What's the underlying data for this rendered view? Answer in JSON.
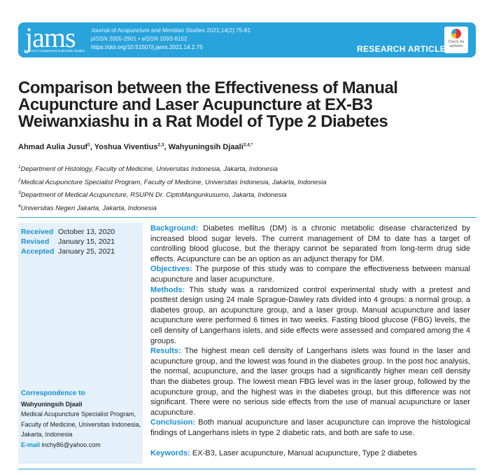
{
  "header": {
    "logo": "jams",
    "logo_sub": "Journal of Acupuncture & Meridian Studies",
    "journal": "Journal of Acupuncture and Meridian Studies 2021;14(2):75-81",
    "issn": "pISSN 2005-2901 • eISSN 2093-8152",
    "doi": "https://doi.org/10.51507/j.jams.2021.14.2.75",
    "article_type": "RESEARCH ARTICLE",
    "badge": "Check for updates"
  },
  "title": "Comparison between the Effectiveness of Manual Acupuncture and Laser Acupuncture at EX-B3 Weiwanxiashu in a Rat Model of Type 2 Diabetes",
  "authors": [
    {
      "name": "Ahmad Aulia Jusuf",
      "sup": "1"
    },
    {
      "name": "Yoshua Viventius",
      "sup": "2,3"
    },
    {
      "name": "Wahyuningsih Djaali",
      "sup": "2,4,*"
    }
  ],
  "affiliations": [
    {
      "sup": "1",
      "text": "Department of Histology, Faculty of Medicine, Universitas Indonesia, Jakarta, Indonesia"
    },
    {
      "sup": "2",
      "text": "Medical Acupuncture Specialist Program, Faculty of Medicine, Universitas Indonesia, Jakarta, Indonesia"
    },
    {
      "sup": "3",
      "text": "Department of Medical Acupuncture, RSUPN Dr. CiptoMangunkusumo, Jakarta, Indonesia"
    },
    {
      "sup": "4",
      "text": "Universitas Negeri Jakarta, Jakarta, Indonesia"
    }
  ],
  "dates": [
    {
      "label": "Received",
      "value": "October 13, 2020"
    },
    {
      "label": "Revised",
      "value": "January 15, 2021"
    },
    {
      "label": "Accepted",
      "value": "January 25, 2021"
    }
  ],
  "correspondence": {
    "label": "Correspondence to",
    "name": "Wahyuningsih Djaali",
    "address": "Medical Acupuncture Specialist Program, Faculty of Medicine, Universitas Indonesia, Jakarta, Indonesia",
    "email_label": "E-mail",
    "email": "inchy86@yahoo.com"
  },
  "abstract": [
    {
      "label": "Background:",
      "text": "Diabetes mellitus (DM) is a chronic metabolic disease characterized by increased blood sugar levels. The current management of DM to date has a target of controlling blood glucose, but the therapy cannot be separated from long-term drug side effects. Acupuncture can be an option as an adjunct therapy for DM."
    },
    {
      "label": "Objectives:",
      "text": "The purpose of this study was to compare the effectiveness between manual acupuncture and laser acupuncture."
    },
    {
      "label": "Methods:",
      "text": "This study was a randomized control experimental study with a pretest and posttest design using 24 male Sprague-Dawley rats divided into 4 groups: a normal group, a diabetes group, an acupuncture group, and a laser group. Manual acupuncture and laser acupuncture were performed 6 times in two weeks. Fasting blood glucose (FBG) levels, the cell density of Langerhans islets, and side effects were assessed and compared among the 4 groups."
    },
    {
      "label": "Results:",
      "text": "The highest mean cell density of Langerhans islets was found in the laser and acupuncture group, and the lowest was found in the diabetes group. In the post hoc analysis, the normal, acupuncture, and the laser groups had a significantly higher mean cell density than the diabetes group. The lowest mean FBG level was in the laser group, followed by the acupuncture group, and the highest was in the diabetes group, but this difference was not significant. There were no serious side effects from the use of manual acupuncture or laser acupuncture."
    },
    {
      "label": "Conclusion:",
      "text": "Both manual acupuncture and laser acupuncture can improve the histological findings of Langerhans islets in type 2 diabetic rats, and both are safe to use."
    }
  ],
  "keywords": {
    "label": "Keywords:",
    "text": "EX-B3, Laser acupuncture, Manual acupuncture, Type 2 diabetes"
  }
}
